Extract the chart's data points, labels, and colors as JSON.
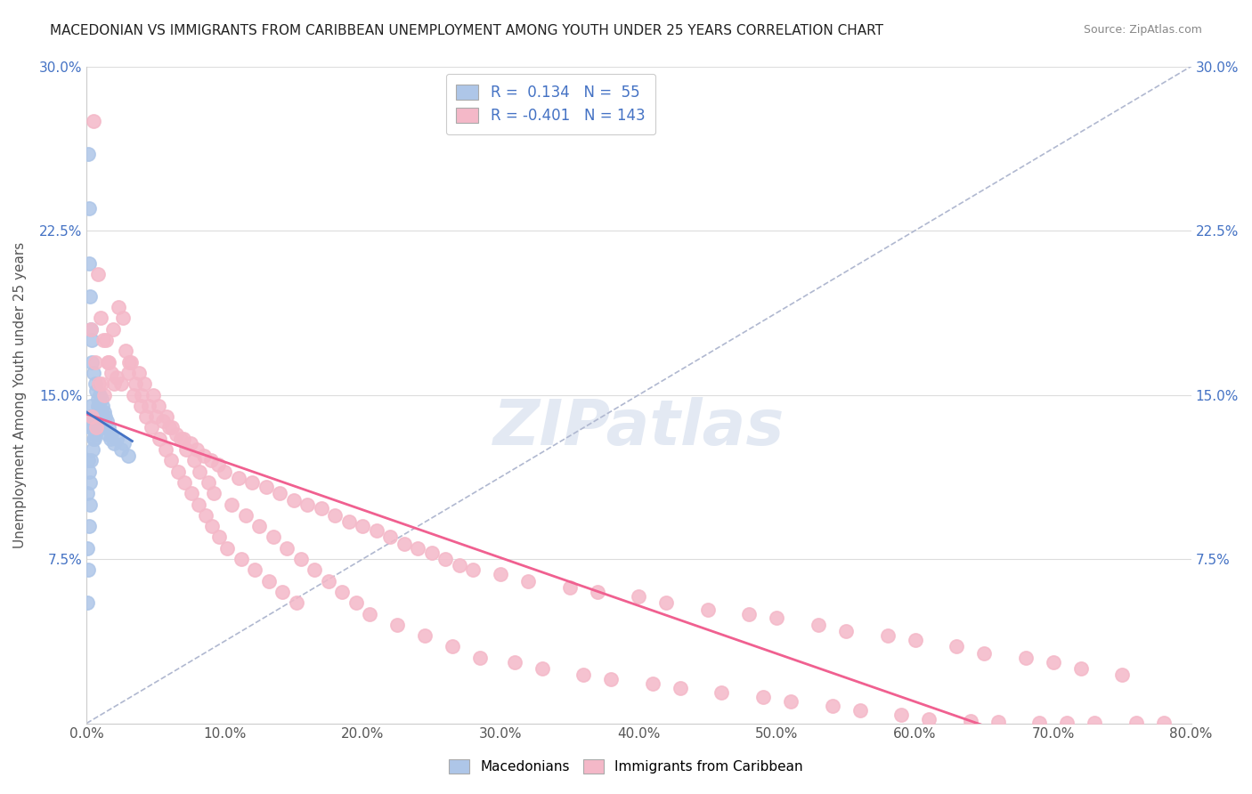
{
  "title": "MACEDONIAN VS IMMIGRANTS FROM CARIBBEAN UNEMPLOYMENT AMONG YOUTH UNDER 25 YEARS CORRELATION CHART",
  "source": "Source: ZipAtlas.com",
  "xlabel_ticks": [
    "0.0%",
    "10.0%",
    "20.0%",
    "30.0%",
    "40.0%",
    "50.0%",
    "60.0%",
    "70.0%",
    "80.0%"
  ],
  "ylabel_ticks": [
    "7.5%",
    "15.0%",
    "22.5%",
    "30.0%"
  ],
  "ylabel_label": "Unemployment Among Youth under 25 years",
  "legend_labels": [
    "Macedonians",
    "Immigrants from Caribbean"
  ],
  "R_macedonian": 0.134,
  "N_macedonian": 55,
  "R_caribbean": -0.401,
  "N_caribbean": 143,
  "macedonian_color": "#aec6e8",
  "caribbean_color": "#f4b8c8",
  "macedonian_line_color": "#4472c4",
  "caribbean_line_color": "#f06090",
  "diagonal_color": "#b0b8d0",
  "title_color": "#222222",
  "source_color": "#888888",
  "axis_label_color": "#555555",
  "tick_color": "#555555",
  "grid_color": "#dddddd",
  "legend_R_N_color": "#4472c4",
  "watermark_color": "#c8d4e8",
  "macedonian_scatter_x": [
    0.1,
    0.15,
    0.2,
    0.25,
    0.3,
    0.35,
    0.4,
    0.5,
    0.6,
    0.7,
    0.8,
    0.9,
    1.0,
    1.1,
    1.2,
    1.3,
    1.5,
    1.7,
    2.0,
    2.5,
    3.0,
    0.05,
    0.08,
    0.12,
    0.18,
    0.22,
    0.28,
    0.32,
    0.38,
    0.42,
    0.52,
    0.62,
    0.72,
    0.85,
    0.95,
    1.05,
    1.15,
    1.25,
    1.35,
    1.45,
    1.6,
    1.8,
    2.2,
    2.7,
    0.07,
    0.13,
    0.17,
    0.23,
    0.27,
    0.33,
    0.43,
    0.55,
    0.65,
    0.75,
    0.88
  ],
  "macedonian_scatter_y": [
    26.0,
    23.5,
    21.0,
    19.5,
    18.0,
    17.5,
    16.5,
    16.0,
    15.5,
    15.2,
    14.8,
    14.5,
    14.2,
    14.0,
    13.8,
    13.5,
    13.2,
    13.0,
    12.8,
    12.5,
    12.2,
    8.0,
    10.5,
    12.0,
    11.5,
    13.5,
    14.0,
    14.5,
    14.0,
    13.5,
    13.0,
    13.5,
    14.0,
    14.5,
    15.0,
    14.8,
    14.5,
    14.2,
    14.0,
    13.8,
    13.5,
    13.2,
    13.0,
    12.8,
    5.5,
    7.0,
    9.0,
    10.0,
    11.0,
    12.0,
    12.5,
    13.0,
    13.2,
    13.5,
    14.0
  ],
  "caribbean_scatter_x": [
    0.5,
    0.8,
    1.0,
    1.2,
    1.5,
    1.8,
    2.0,
    2.5,
    3.0,
    3.5,
    4.0,
    4.5,
    5.0,
    5.5,
    6.0,
    6.5,
    7.0,
    7.5,
    8.0,
    8.5,
    9.0,
    9.5,
    10.0,
    11.0,
    12.0,
    13.0,
    14.0,
    15.0,
    16.0,
    17.0,
    18.0,
    19.0,
    20.0,
    21.0,
    22.0,
    23.0,
    24.0,
    25.0,
    26.0,
    27.0,
    28.0,
    30.0,
    32.0,
    35.0,
    37.0,
    40.0,
    42.0,
    45.0,
    48.0,
    50.0,
    53.0,
    55.0,
    58.0,
    60.0,
    63.0,
    65.0,
    68.0,
    70.0,
    72.0,
    75.0,
    0.3,
    0.6,
    0.9,
    1.3,
    1.6,
    2.2,
    2.8,
    3.2,
    3.8,
    4.2,
    4.8,
    5.2,
    5.8,
    6.2,
    6.8,
    7.2,
    7.8,
    8.2,
    8.8,
    9.2,
    10.5,
    11.5,
    12.5,
    13.5,
    14.5,
    15.5,
    16.5,
    17.5,
    18.5,
    19.5,
    20.5,
    22.5,
    24.5,
    26.5,
    28.5,
    31.0,
    33.0,
    36.0,
    38.0,
    41.0,
    43.0,
    46.0,
    49.0,
    51.0,
    54.0,
    56.0,
    59.0,
    61.0,
    64.0,
    66.0,
    69.0,
    71.0,
    73.0,
    76.0,
    78.0,
    0.4,
    0.7,
    1.1,
    1.4,
    1.9,
    2.3,
    2.6,
    3.1,
    3.4,
    3.9,
    4.3,
    4.7,
    5.3,
    5.7,
    6.1,
    6.6,
    7.1,
    7.6,
    8.1,
    8.6,
    9.1,
    9.6,
    10.2,
    11.2,
    12.2,
    13.2,
    14.2,
    15.2
  ],
  "caribbean_scatter_y": [
    27.5,
    20.5,
    18.5,
    17.5,
    16.5,
    16.0,
    15.5,
    15.5,
    16.0,
    15.5,
    15.0,
    14.5,
    14.0,
    13.8,
    13.5,
    13.2,
    13.0,
    12.8,
    12.5,
    12.2,
    12.0,
    11.8,
    11.5,
    11.2,
    11.0,
    10.8,
    10.5,
    10.2,
    10.0,
    9.8,
    9.5,
    9.2,
    9.0,
    8.8,
    8.5,
    8.2,
    8.0,
    7.8,
    7.5,
    7.2,
    7.0,
    6.8,
    6.5,
    6.2,
    6.0,
    5.8,
    5.5,
    5.2,
    5.0,
    4.8,
    4.5,
    4.2,
    4.0,
    3.8,
    3.5,
    3.2,
    3.0,
    2.8,
    2.5,
    2.2,
    18.0,
    16.5,
    15.5,
    15.0,
    16.5,
    15.8,
    17.0,
    16.5,
    16.0,
    15.5,
    15.0,
    14.5,
    14.0,
    13.5,
    13.0,
    12.5,
    12.0,
    11.5,
    11.0,
    10.5,
    10.0,
    9.5,
    9.0,
    8.5,
    8.0,
    7.5,
    7.0,
    6.5,
    6.0,
    5.5,
    5.0,
    4.5,
    4.0,
    3.5,
    3.0,
    2.8,
    2.5,
    2.2,
    2.0,
    1.8,
    1.6,
    1.4,
    1.2,
    1.0,
    0.8,
    0.6,
    0.4,
    0.2,
    0.1,
    0.05,
    0.03,
    0.02,
    0.01,
    0.005,
    0.002,
    14.0,
    13.5,
    15.5,
    17.5,
    18.0,
    19.0,
    18.5,
    16.5,
    15.0,
    14.5,
    14.0,
    13.5,
    13.0,
    12.5,
    12.0,
    11.5,
    11.0,
    10.5,
    10.0,
    9.5,
    9.0,
    8.5,
    8.0,
    7.5,
    7.0,
    6.5,
    6.0,
    5.5
  ],
  "xmin": 0.0,
  "xmax": 80.0,
  "ymin": 0.0,
  "ymax": 30.0,
  "figwidth": 14.06,
  "figheight": 8.92
}
